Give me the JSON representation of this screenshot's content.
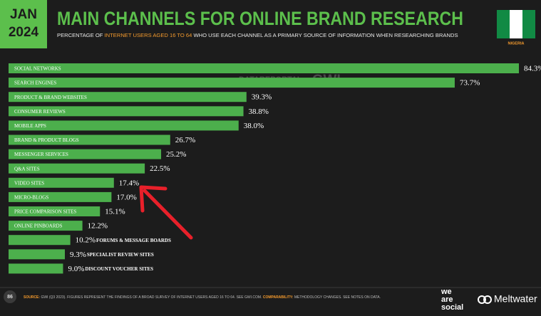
{
  "header": {
    "month": "JAN",
    "year": "2024",
    "title": "MAIN CHANNELS FOR ONLINE BRAND RESEARCH",
    "subtitle": [
      "PERCENTAGE OF",
      "INTERNET USERS AGED 16 TO 64",
      "WHO USE EACH CHANNEL AS A PRIMARY SOURCE OF INFORMATION WHEN RESEARCHING BRANDS"
    ],
    "country": "NIGERIA"
  },
  "watermark": [
    "DATAREPORTAL",
    "GWI."
  ],
  "chart_data": {
    "type": "bar",
    "orientation": "horizontal",
    "color": "#4caf4c",
    "categories": [
      "SOCIAL NETWORKS",
      "SEARCH ENGINES",
      "PRODUCT & BRAND WEBSITES",
      "CONSUMER REVIEWS",
      "MOBILE APPS",
      "BRAND & PRODUCT BLOGS",
      "MESSENGER SERVICES",
      "Q&A SITES",
      "VIDEO SITES",
      "MICRO-BLOGS",
      "PRICE COMPARISON SITES",
      "ONLINE PINBOARDS",
      "FORUMS & MESSAGE BOARDS",
      "SPECIALIST REVIEW SITES",
      "DISCOUNT VOUCHER SITES"
    ],
    "values": [
      84.3,
      73.7,
      39.3,
      38.8,
      38.0,
      26.7,
      25.2,
      22.5,
      17.4,
      17.0,
      15.1,
      12.2,
      10.2,
      9.3,
      9.0
    ],
    "value_labels": [
      "84.3%",
      "73.7%",
      "39.3%",
      "38.8%",
      "38.0%",
      "26.7%",
      "25.2%",
      "22.5%",
      "17.4%",
      "17.0%",
      "15.1%",
      "12.2%",
      "10.2%",
      "9.3%",
      "9.0%"
    ]
  },
  "footer": {
    "page": "86",
    "source_label": "SOURCE:",
    "source_text": "GWI (Q3 2023). FIGURES REPRESENT THE FINDINGS OF A BROAD SURVEY OF INTERNET USERS AGED 16 TO 64. SEE GWI.COM.",
    "comparability_label": "COMPARABILITY:",
    "comparability_text": "METHODOLOGY CHANGES. SEE NOTES ON DATA.",
    "brand_words": [
      "we",
      "are",
      "social"
    ],
    "brand2": "Meltwater"
  }
}
